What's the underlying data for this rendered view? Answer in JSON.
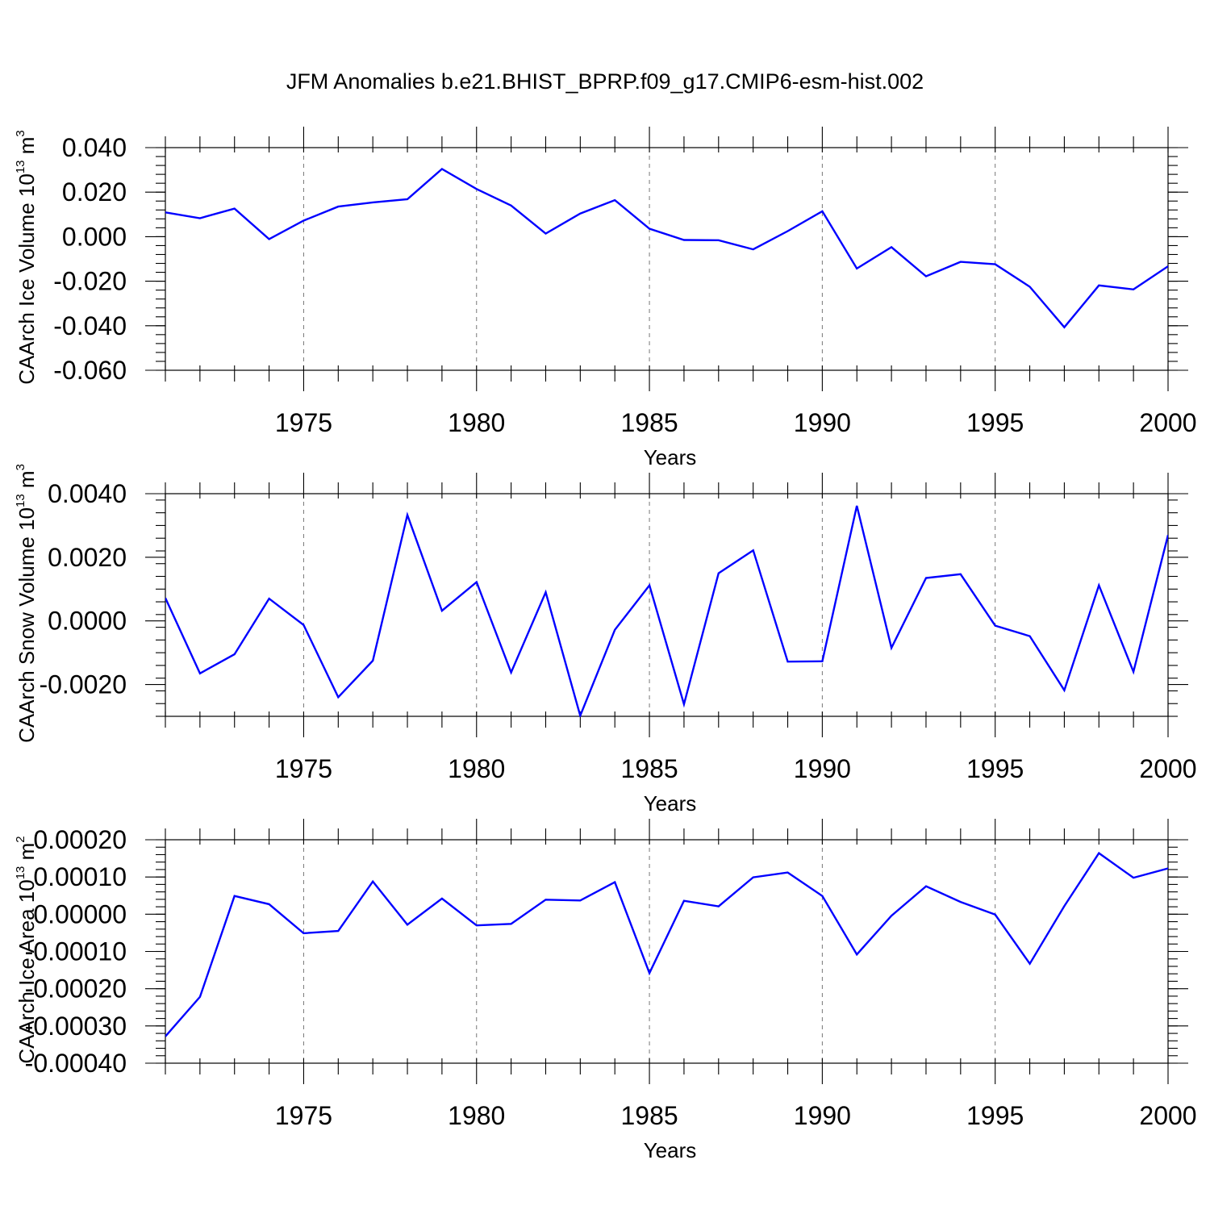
{
  "title": "JFM Anomalies b.e21.BHIST_BPRP.f09_g17.CMIP6-esm-hist.002",
  "line_color": "#0000ff",
  "chart_data": [
    {
      "type": "line",
      "ylabel": "CAArch Ice Volume 10",
      "ylabel_exp": "13",
      "ylabel_unit": " m",
      "ylabel_unit_exp": "3",
      "xlabel": "Years",
      "xlim": [
        1971,
        2000
      ],
      "ylim": [
        -0.06,
        0.04
      ],
      "yticks": [
        -0.06,
        -0.04,
        -0.02,
        0.0,
        0.02,
        0.04
      ],
      "ytick_labels": [
        "-0.060",
        "-0.040",
        "-0.020",
        "0.000",
        "0.020",
        "0.040"
      ],
      "xticks": [
        1975,
        1980,
        1985,
        1990,
        1995,
        2000
      ],
      "xtick_labels": [
        "1975",
        "1980",
        "1985",
        "1990",
        "1995",
        "2000"
      ],
      "grid_x": [
        1975,
        1980,
        1985,
        1990,
        1995
      ],
      "x": [
        1971,
        1972,
        1973,
        1974,
        1975,
        1976,
        1977,
        1978,
        1979,
        1980,
        1981,
        1982,
        1983,
        1984,
        1985,
        1986,
        1987,
        1988,
        1989,
        1990,
        1991,
        1992,
        1993,
        1994,
        1995,
        1996,
        1997,
        1998,
        1999,
        2000
      ],
      "values": [
        0.0109,
        0.0083,
        0.0126,
        -0.0011,
        0.0072,
        0.0135,
        0.0154,
        0.0168,
        0.0304,
        0.0214,
        0.014,
        0.0014,
        0.0104,
        0.0164,
        0.0036,
        -0.0015,
        -0.0016,
        -0.0057,
        0.0025,
        0.0114,
        -0.0143,
        -0.0047,
        -0.0178,
        -0.0113,
        -0.0124,
        -0.0225,
        -0.0407,
        -0.0219,
        -0.0237,
        -0.0133
      ]
    },
    {
      "type": "line",
      "ylabel": "CAArch Snow Volume 10",
      "ylabel_exp": "13",
      "ylabel_unit": " m",
      "ylabel_unit_exp": "3",
      "xlabel": "Years",
      "xlim": [
        1971,
        2000
      ],
      "ylim": [
        -0.003,
        0.004
      ],
      "yticks": [
        -0.002,
        0.0,
        0.002,
        0.004
      ],
      "ytick_labels": [
        "-0.0020",
        "0.0000",
        "0.0020",
        "0.0040"
      ],
      "xticks": [
        1975,
        1980,
        1985,
        1990,
        1995,
        2000
      ],
      "xtick_labels": [
        "1975",
        "1980",
        "1985",
        "1990",
        "1995",
        "2000"
      ],
      "grid_x": [
        1975,
        1980,
        1985,
        1990,
        1995
      ],
      "x": [
        1971,
        1972,
        1973,
        1974,
        1975,
        1976,
        1977,
        1978,
        1979,
        1980,
        1981,
        1982,
        1983,
        1984,
        1985,
        1986,
        1987,
        1988,
        1989,
        1990,
        1991,
        1992,
        1993,
        1994,
        1995,
        1996,
        1997,
        1998,
        1999,
        2000
      ],
      "values": [
        0.00072,
        -0.00165,
        -0.00105,
        0.0007,
        -0.00013,
        -0.0024,
        -0.00125,
        0.00333,
        0.00032,
        0.00122,
        -0.00162,
        0.0009,
        -0.00298,
        -0.00028,
        0.00112,
        -0.00262,
        0.0015,
        0.00222,
        -0.00128,
        -0.00127,
        0.00362,
        -0.00085,
        0.00135,
        0.00147,
        -0.00015,
        -0.00048,
        -0.00218,
        0.00112,
        -0.0016,
        0.0027
      ]
    },
    {
      "type": "line",
      "ylabel": "CAArch Ice Area 10",
      "ylabel_exp": "13",
      "ylabel_unit": " m",
      "ylabel_unit_exp": "2",
      "xlabel": "Years",
      "xlim": [
        1971,
        2000
      ],
      "ylim": [
        -0.0004,
        0.0002
      ],
      "yticks": [
        -0.0004,
        -0.0003,
        -0.0002,
        -0.0001,
        0.0,
        0.0001,
        0.0002
      ],
      "ytick_labels": [
        "-0.00040",
        "-0.00030",
        "-0.00020",
        "-0.00010",
        "0.00000",
        "0.00010",
        "0.00020"
      ],
      "xticks": [
        1975,
        1980,
        1985,
        1990,
        1995,
        2000
      ],
      "xtick_labels": [
        "1975",
        "1980",
        "1985",
        "1990",
        "1995",
        "2000"
      ],
      "grid_x": [
        1975,
        1980,
        1985,
        1990,
        1995
      ],
      "x": [
        1971,
        1972,
        1973,
        1974,
        1975,
        1976,
        1977,
        1978,
        1979,
        1980,
        1981,
        1982,
        1983,
        1984,
        1985,
        1986,
        1987,
        1988,
        1989,
        1990,
        1991,
        1992,
        1993,
        1994,
        1995,
        1996,
        1997,
        1998,
        1999,
        2000
      ],
      "values": [
        -0.000328,
        -0.000222,
        4.9e-05,
        2.7e-05,
        -5.1e-05,
        -4.5e-05,
        8.8e-05,
        -2.8e-05,
        4.2e-05,
        -3e-05,
        -2.6e-05,
        3.9e-05,
        3.7e-05,
        8.6e-05,
        -0.000158,
        3.6e-05,
        2.1e-05,
        9.9e-05,
        0.000112,
        4.9e-05,
        -0.000108,
        -4e-06,
        7.5e-05,
        3.3e-05,
        -1e-06,
        -0.000133,
        2.2e-05,
        0.000164,
        9.8e-05,
        0.000123
      ]
    }
  ]
}
